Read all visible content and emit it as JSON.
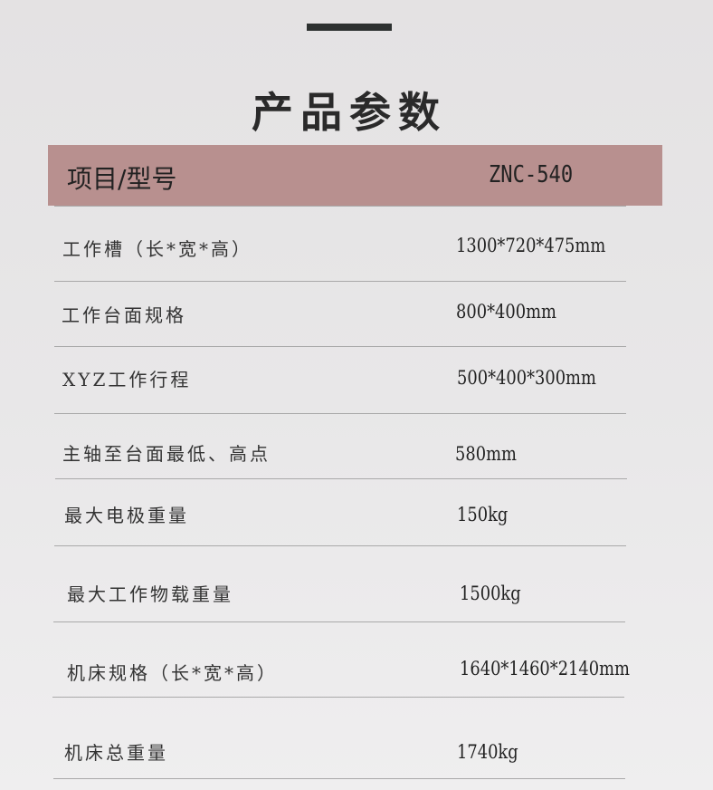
{
  "title": "产品参数",
  "header": {
    "label": "项目/型号",
    "model": "ZNC-540"
  },
  "rows": [
    {
      "label": "工作槽（长*宽*高）",
      "value": "1300*720*475mm"
    },
    {
      "label": "工作台面规格",
      "value": "800*400mm"
    },
    {
      "label": "XYZ工作行程",
      "value": "500*400*300mm"
    },
    {
      "label": "主轴至台面最低、高点",
      "value": "580mm"
    },
    {
      "label": "最大电极重量",
      "value": "150kg"
    },
    {
      "label": "最大工作物载重量",
      "value": "1500kg"
    },
    {
      "label": "机床规格（长*宽*高）",
      "value": "1640*1460*2140mm"
    },
    {
      "label": "机床总重量",
      "value": "1740kg"
    }
  ],
  "colors": {
    "header_bg": "#b8908f",
    "accent_bar": "#2d3130"
  }
}
